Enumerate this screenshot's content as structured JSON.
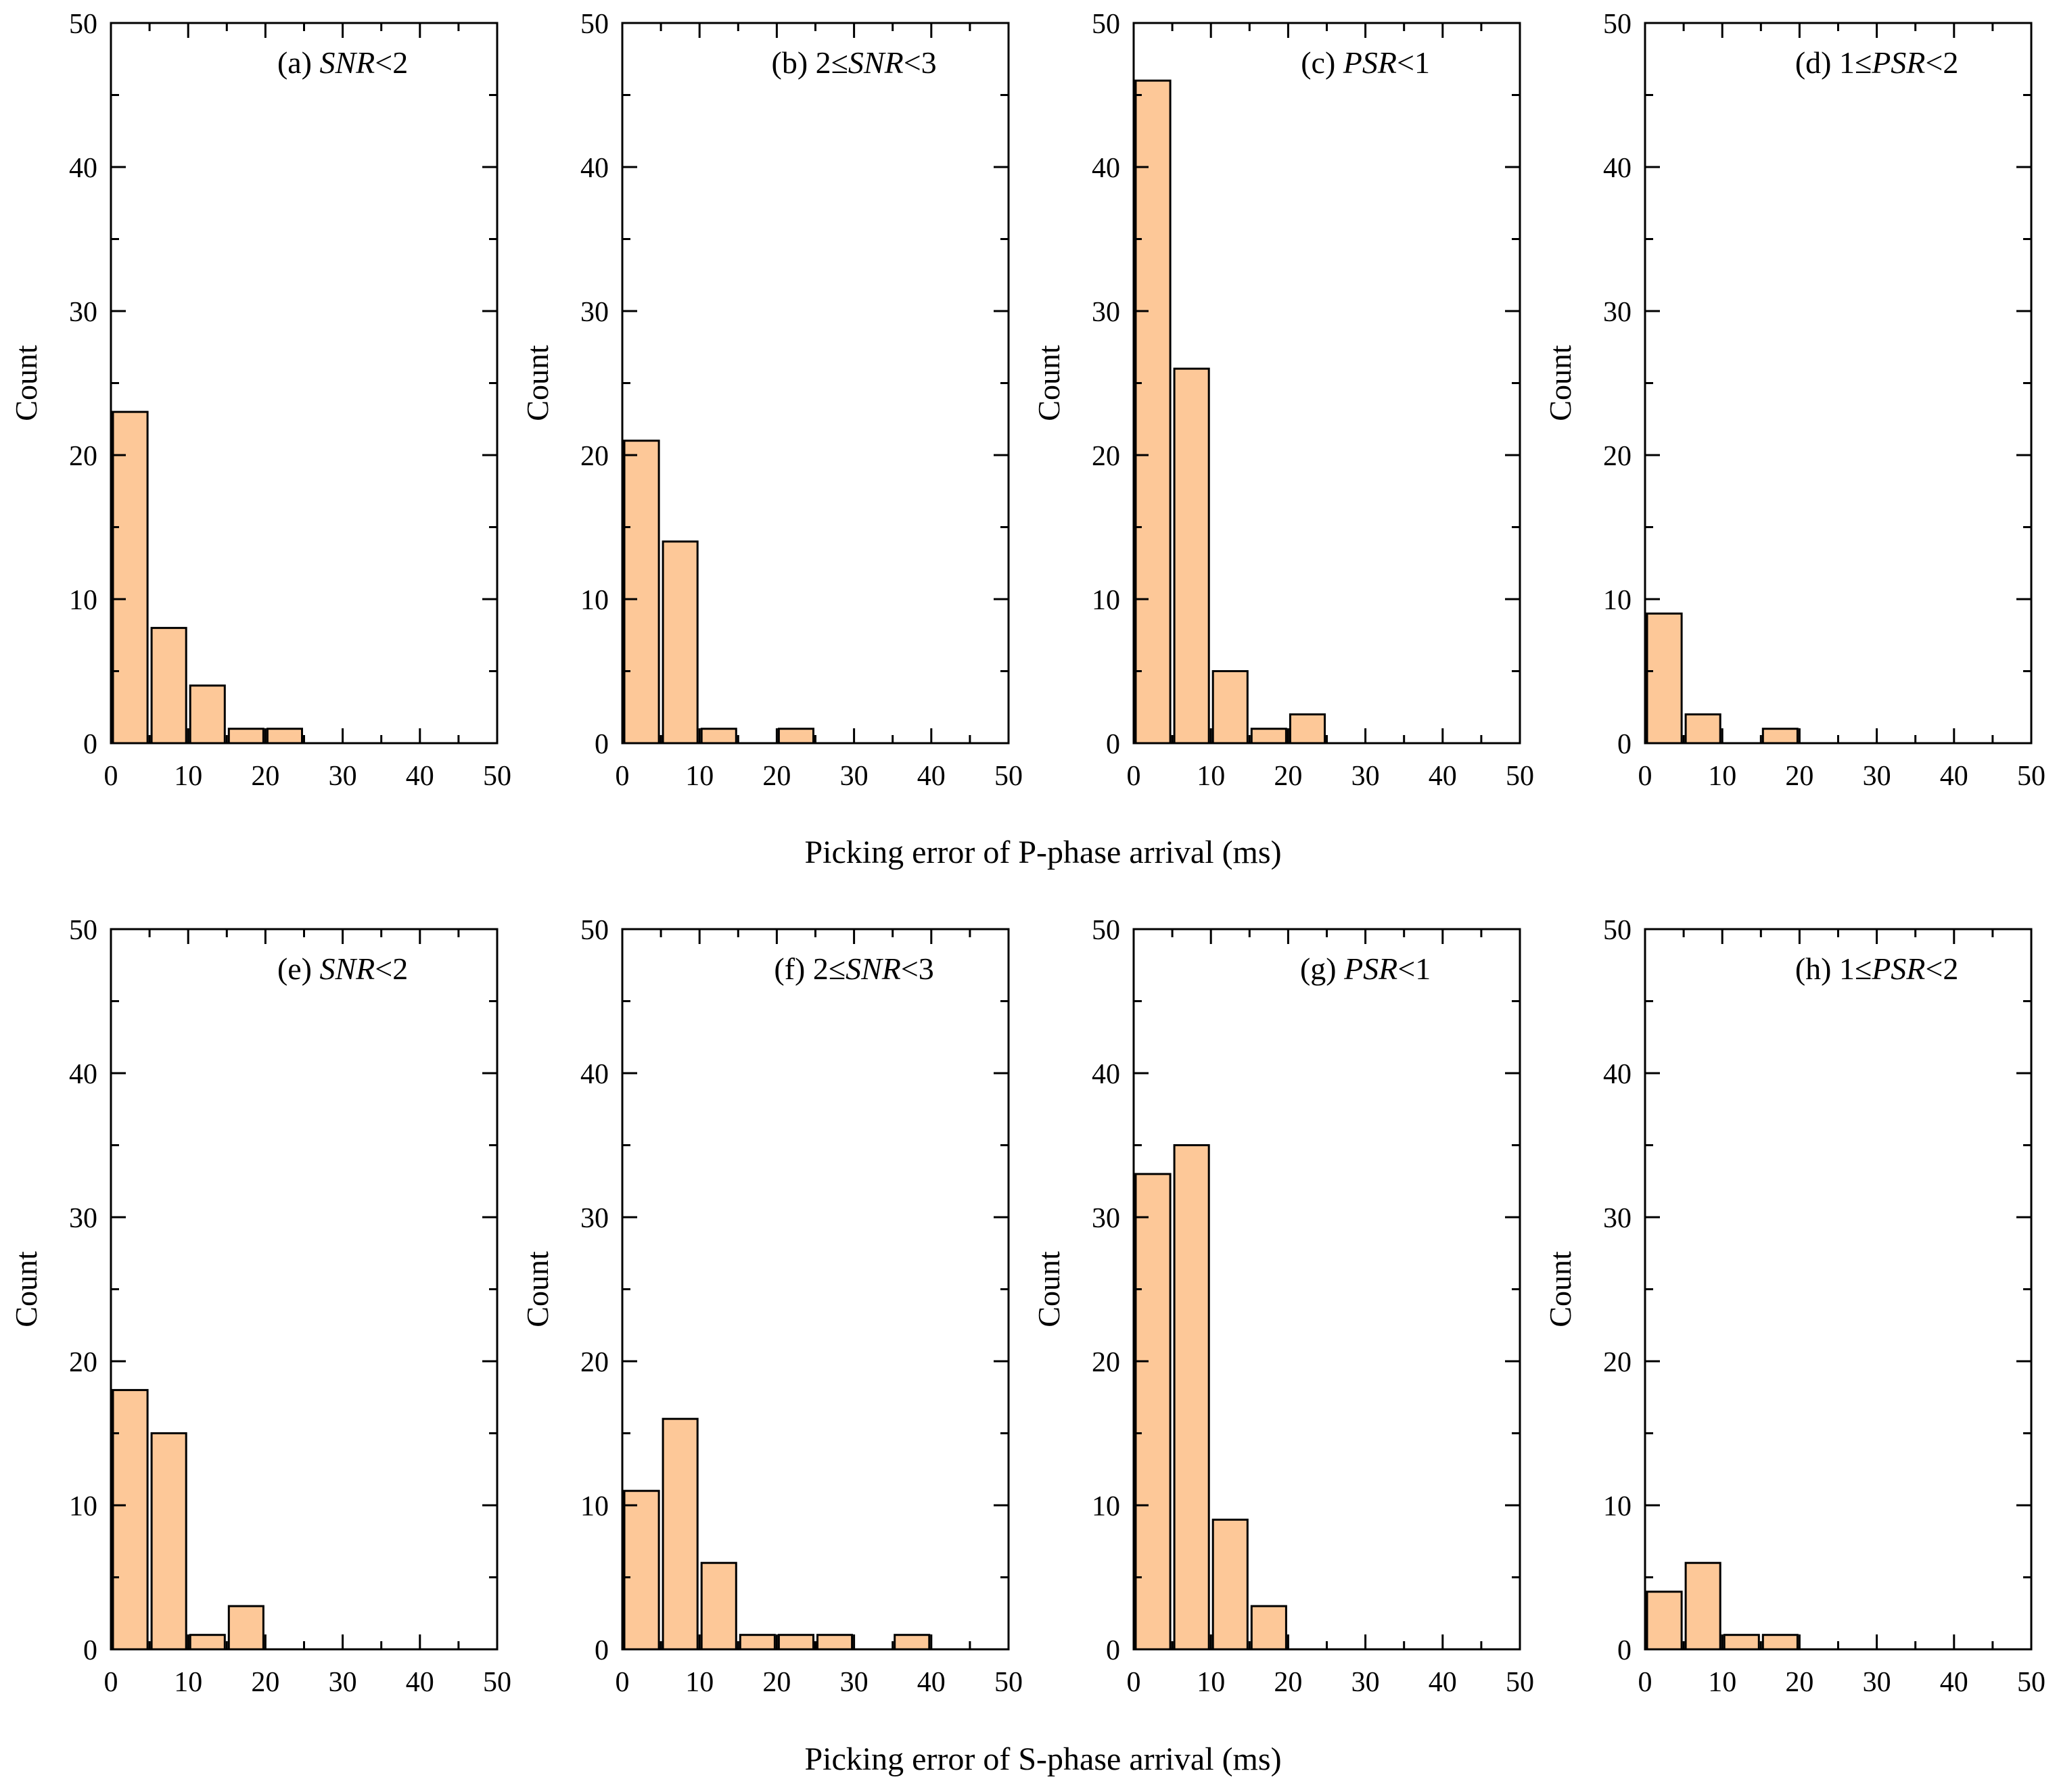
{
  "chart_data": [
    {
      "type": "bar",
      "panel_label": [
        {
          "text": "(a) ",
          "italic": false
        },
        {
          "text": "SNR",
          "italic": true
        },
        {
          "text": "<2",
          "italic": false
        }
      ],
      "bin_edges": [
        0,
        5,
        10,
        15,
        20,
        25,
        30,
        35,
        40,
        45,
        50
      ],
      "values": [
        23,
        8,
        4,
        1,
        1,
        0,
        0,
        0,
        0,
        0
      ],
      "ylabel": "Count",
      "xlim": [
        0,
        50
      ],
      "ylim": [
        0,
        50
      ],
      "xticks": [
        0,
        10,
        20,
        30,
        40,
        50
      ],
      "yticks": [
        0,
        10,
        20,
        30,
        40,
        50
      ],
      "bar_color": "#fdc898",
      "grid": false
    },
    {
      "type": "bar",
      "panel_label": [
        {
          "text": "(b) 2≤",
          "italic": false
        },
        {
          "text": "SNR",
          "italic": true
        },
        {
          "text": "<3",
          "italic": false
        }
      ],
      "bin_edges": [
        0,
        5,
        10,
        15,
        20,
        25,
        30,
        35,
        40,
        45,
        50
      ],
      "values": [
        21,
        14,
        1,
        0,
        1,
        0,
        0,
        0,
        0,
        0
      ],
      "ylabel": "Count",
      "xlim": [
        0,
        50
      ],
      "ylim": [
        0,
        50
      ],
      "xticks": [
        0,
        10,
        20,
        30,
        40,
        50
      ],
      "yticks": [
        0,
        10,
        20,
        30,
        40,
        50
      ],
      "bar_color": "#fdc898",
      "grid": false
    },
    {
      "type": "bar",
      "panel_label": [
        {
          "text": "(c) ",
          "italic": false
        },
        {
          "text": "PSR",
          "italic": true
        },
        {
          "text": "<1",
          "italic": false
        }
      ],
      "bin_edges": [
        0,
        5,
        10,
        15,
        20,
        25,
        30,
        35,
        40,
        45,
        50
      ],
      "values": [
        46,
        26,
        5,
        1,
        2,
        0,
        0,
        0,
        0,
        0
      ],
      "ylabel": "Count",
      "xlim": [
        0,
        50
      ],
      "ylim": [
        0,
        50
      ],
      "xticks": [
        0,
        10,
        20,
        30,
        40,
        50
      ],
      "yticks": [
        0,
        10,
        20,
        30,
        40,
        50
      ],
      "bar_color": "#fdc898",
      "grid": false
    },
    {
      "type": "bar",
      "panel_label": [
        {
          "text": "(d) 1≤",
          "italic": false
        },
        {
          "text": "PSR",
          "italic": true
        },
        {
          "text": "<2",
          "italic": false
        }
      ],
      "bin_edges": [
        0,
        5,
        10,
        15,
        20,
        25,
        30,
        35,
        40,
        45,
        50
      ],
      "values": [
        9,
        2,
        0,
        1,
        0,
        0,
        0,
        0,
        0,
        0
      ],
      "ylabel": "Count",
      "xlim": [
        0,
        50
      ],
      "ylim": [
        0,
        50
      ],
      "xticks": [
        0,
        10,
        20,
        30,
        40,
        50
      ],
      "yticks": [
        0,
        10,
        20,
        30,
        40,
        50
      ],
      "bar_color": "#fdc898",
      "grid": false
    },
    {
      "type": "bar",
      "panel_label": [
        {
          "text": "(e) ",
          "italic": false
        },
        {
          "text": "SNR",
          "italic": true
        },
        {
          "text": "<2",
          "italic": false
        }
      ],
      "bin_edges": [
        0,
        5,
        10,
        15,
        20,
        25,
        30,
        35,
        40,
        45,
        50
      ],
      "values": [
        18,
        15,
        1,
        3,
        0,
        0,
        0,
        0,
        0,
        0
      ],
      "ylabel": "Count",
      "xlim": [
        0,
        50
      ],
      "ylim": [
        0,
        50
      ],
      "xticks": [
        0,
        10,
        20,
        30,
        40,
        50
      ],
      "yticks": [
        0,
        10,
        20,
        30,
        40,
        50
      ],
      "bar_color": "#fdc898",
      "grid": false
    },
    {
      "type": "bar",
      "panel_label": [
        {
          "text": "(f) 2≤",
          "italic": false
        },
        {
          "text": "SNR",
          "italic": true
        },
        {
          "text": "<3",
          "italic": false
        }
      ],
      "bin_edges": [
        0,
        5,
        10,
        15,
        20,
        25,
        30,
        35,
        40,
        45,
        50
      ],
      "values": [
        11,
        16,
        6,
        1,
        1,
        1,
        0,
        1,
        0,
        0
      ],
      "ylabel": "Count",
      "xlim": [
        0,
        50
      ],
      "ylim": [
        0,
        50
      ],
      "xticks": [
        0,
        10,
        20,
        30,
        40,
        50
      ],
      "yticks": [
        0,
        10,
        20,
        30,
        40,
        50
      ],
      "bar_color": "#fdc898",
      "grid": false
    },
    {
      "type": "bar",
      "panel_label": [
        {
          "text": "(g) ",
          "italic": false
        },
        {
          "text": "PSR",
          "italic": true
        },
        {
          "text": "<1",
          "italic": false
        }
      ],
      "bin_edges": [
        0,
        5,
        10,
        15,
        20,
        25,
        30,
        35,
        40,
        45,
        50
      ],
      "values": [
        33,
        35,
        9,
        3,
        0,
        0,
        0,
        0,
        0,
        0
      ],
      "ylabel": "Count",
      "xlim": [
        0,
        50
      ],
      "ylim": [
        0,
        50
      ],
      "xticks": [
        0,
        10,
        20,
        30,
        40,
        50
      ],
      "yticks": [
        0,
        10,
        20,
        30,
        40,
        50
      ],
      "bar_color": "#fdc898",
      "grid": false
    },
    {
      "type": "bar",
      "panel_label": [
        {
          "text": "(h) 1≤",
          "italic": false
        },
        {
          "text": "PSR",
          "italic": true
        },
        {
          "text": "<2",
          "italic": false
        }
      ],
      "bin_edges": [
        0,
        5,
        10,
        15,
        20,
        25,
        30,
        35,
        40,
        45,
        50
      ],
      "values": [
        4,
        6,
        1,
        1,
        0,
        0,
        0,
        0,
        0,
        0
      ],
      "ylabel": "Count",
      "xlim": [
        0,
        50
      ],
      "ylim": [
        0,
        50
      ],
      "xticks": [
        0,
        10,
        20,
        30,
        40,
        50
      ],
      "yticks": [
        0,
        10,
        20,
        30,
        40,
        50
      ],
      "bar_color": "#fdc898",
      "grid": false
    }
  ],
  "row_xlabels": [
    "Picking error of P-phase arrival (ms)",
    "Picking error of S-phase arrival (ms)"
  ]
}
